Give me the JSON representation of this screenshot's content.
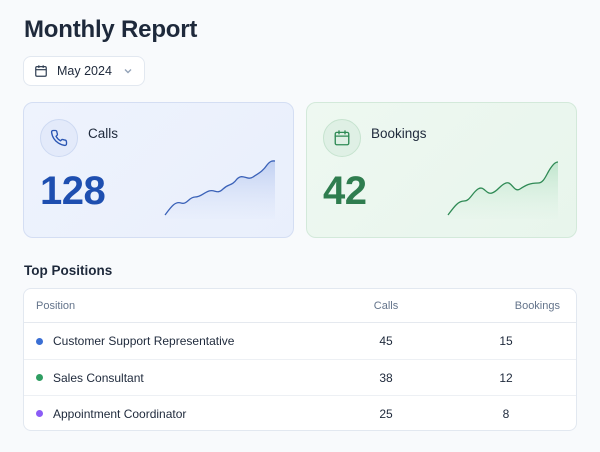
{
  "page": {
    "title": "Monthly Report"
  },
  "month_select": {
    "value": "May 2024",
    "icon": "calendar-icon",
    "chevron": "chevron-down-icon"
  },
  "cards": {
    "calls": {
      "label": "Calls",
      "value": "128",
      "icon": "phone-icon",
      "accent": "#1e4fb0"
    },
    "bookings": {
      "label": "Bookings",
      "value": "42",
      "icon": "calendar-icon",
      "accent": "#2f7d4f"
    }
  },
  "top_positions": {
    "title": "Top Positions",
    "headers": {
      "position": "Position",
      "calls": "Calls",
      "bookings": "Bookings"
    },
    "rows": [
      {
        "position": "Customer Support Representative",
        "calls": "45",
        "bookings": "15",
        "color": "#3b6fd4"
      },
      {
        "position": "Sales Consultant",
        "calls": "38",
        "bookings": "12",
        "color": "#2f9e62"
      },
      {
        "position": "Appointment Coordinator",
        "calls": "25",
        "bookings": "8",
        "color": "#8b5cf6"
      }
    ]
  }
}
